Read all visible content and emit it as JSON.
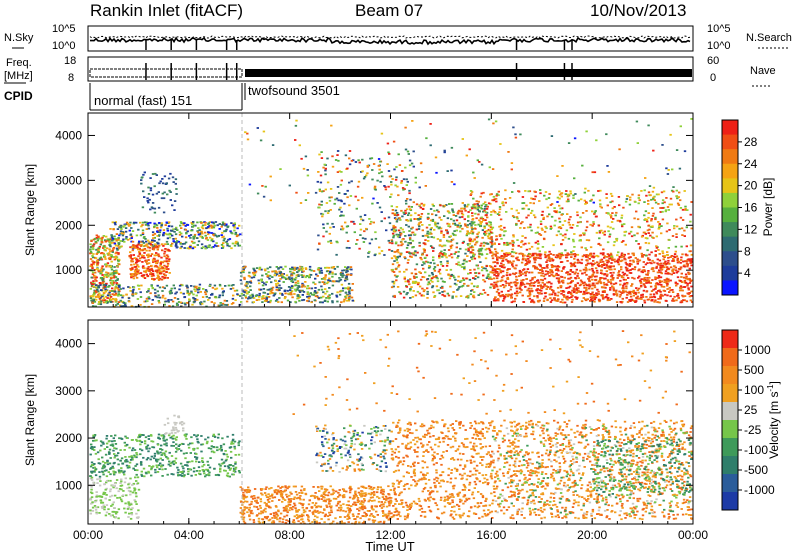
{
  "header": {
    "station": "Rankin Inlet (fitACF)",
    "beam": "Beam 07",
    "date": "10/Nov/2013"
  },
  "noise_panel": {
    "left_label": "N.Sky",
    "right_label": "N.Search",
    "left_ticks": [
      "10^5",
      "10^0"
    ],
    "right_ticks": [
      "10^5",
      "10^0"
    ]
  },
  "freq_panel": {
    "left_label_1": "Freq.",
    "left_label_2": "[MHz]",
    "right_label": "Nave",
    "left_ticks": [
      "18",
      "8"
    ],
    "right_ticks": [
      "60",
      "0"
    ]
  },
  "cpid": {
    "label": "CPID",
    "modes": [
      {
        "name": "normal (fast) 151",
        "start_hour": 0,
        "end_hour": 6
      },
      {
        "name": "twofsound 3501",
        "start_hour": 6,
        "end_hour": 24
      }
    ]
  },
  "x_axis": {
    "label": "Time UT",
    "ticks": [
      "00:00",
      "04:00",
      "08:00",
      "12:00",
      "16:00",
      "20:00",
      "00:00"
    ],
    "range_hours": [
      0,
      24
    ]
  },
  "chart_data": [
    {
      "type": "heatmap",
      "name": "power",
      "ylabel": "Slant Range [km]",
      "yticks": [
        "1000",
        "2000",
        "3000",
        "4000"
      ],
      "ylim": [
        180,
        4500
      ],
      "colorbar": {
        "label": "Power [dB]",
        "ticks": [
          "4",
          "8",
          "12",
          "16",
          "20",
          "24",
          "28"
        ],
        "range": [
          0,
          32
        ],
        "colors": [
          "#0a14ff",
          "#1e3c9b",
          "#2d4e8c",
          "#2e6b72",
          "#3f8a5b",
          "#56b03e",
          "#8fd13a",
          "#e6c417",
          "#f5a313",
          "#f07a12",
          "#f04e14",
          "#ee2016"
        ]
      }
    },
    {
      "type": "heatmap",
      "name": "velocity",
      "ylabel": "Slant Range [km]",
      "yticks": [
        "1000",
        "2000",
        "3000",
        "4000"
      ],
      "ylim": [
        180,
        4500
      ],
      "colorbar": {
        "label_main": "Velocity [m s",
        "label_sup": "-1",
        "label_close": "]",
        "ticks": [
          "1000",
          "500",
          "100",
          "25",
          "-25",
          "-100",
          "-500",
          "-1000"
        ],
        "colors": [
          "#1c3aa6",
          "#2a5c9a",
          "#2f7e6b",
          "#3e9a5a",
          "#76c64a",
          "#c8c8c2",
          "#f0a020",
          "#f28a1e",
          "#f06a1a",
          "#ee2a18"
        ]
      }
    }
  ]
}
